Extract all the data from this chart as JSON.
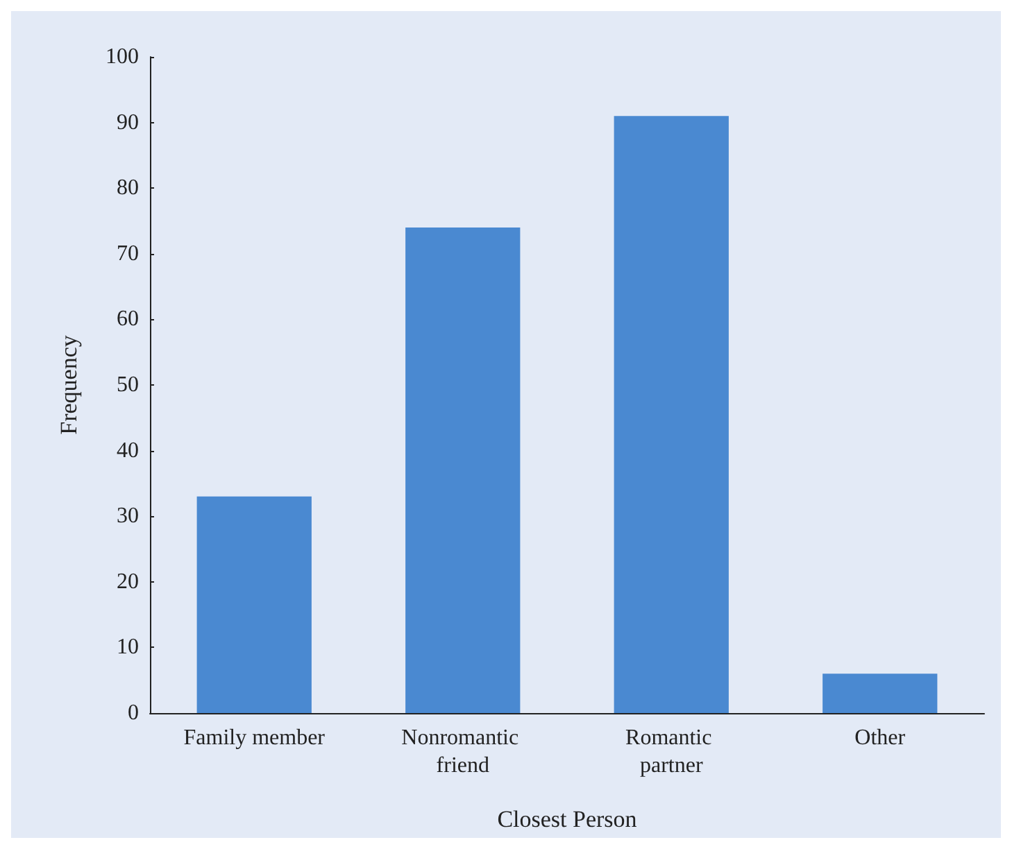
{
  "chart_data": {
    "type": "bar",
    "xlabel": "Closest Person",
    "ylabel": "Frequency",
    "categories": [
      "Family member",
      "Nonromantic friend",
      "Romantic partner",
      "Other"
    ],
    "values": [
      33,
      74,
      91,
      6
    ],
    "color": "#4a89d1",
    "ylim": [
      0,
      100
    ],
    "yticks": [
      0,
      10,
      20,
      30,
      40,
      50,
      60,
      70,
      80,
      90,
      100
    ],
    "grid": false
  }
}
